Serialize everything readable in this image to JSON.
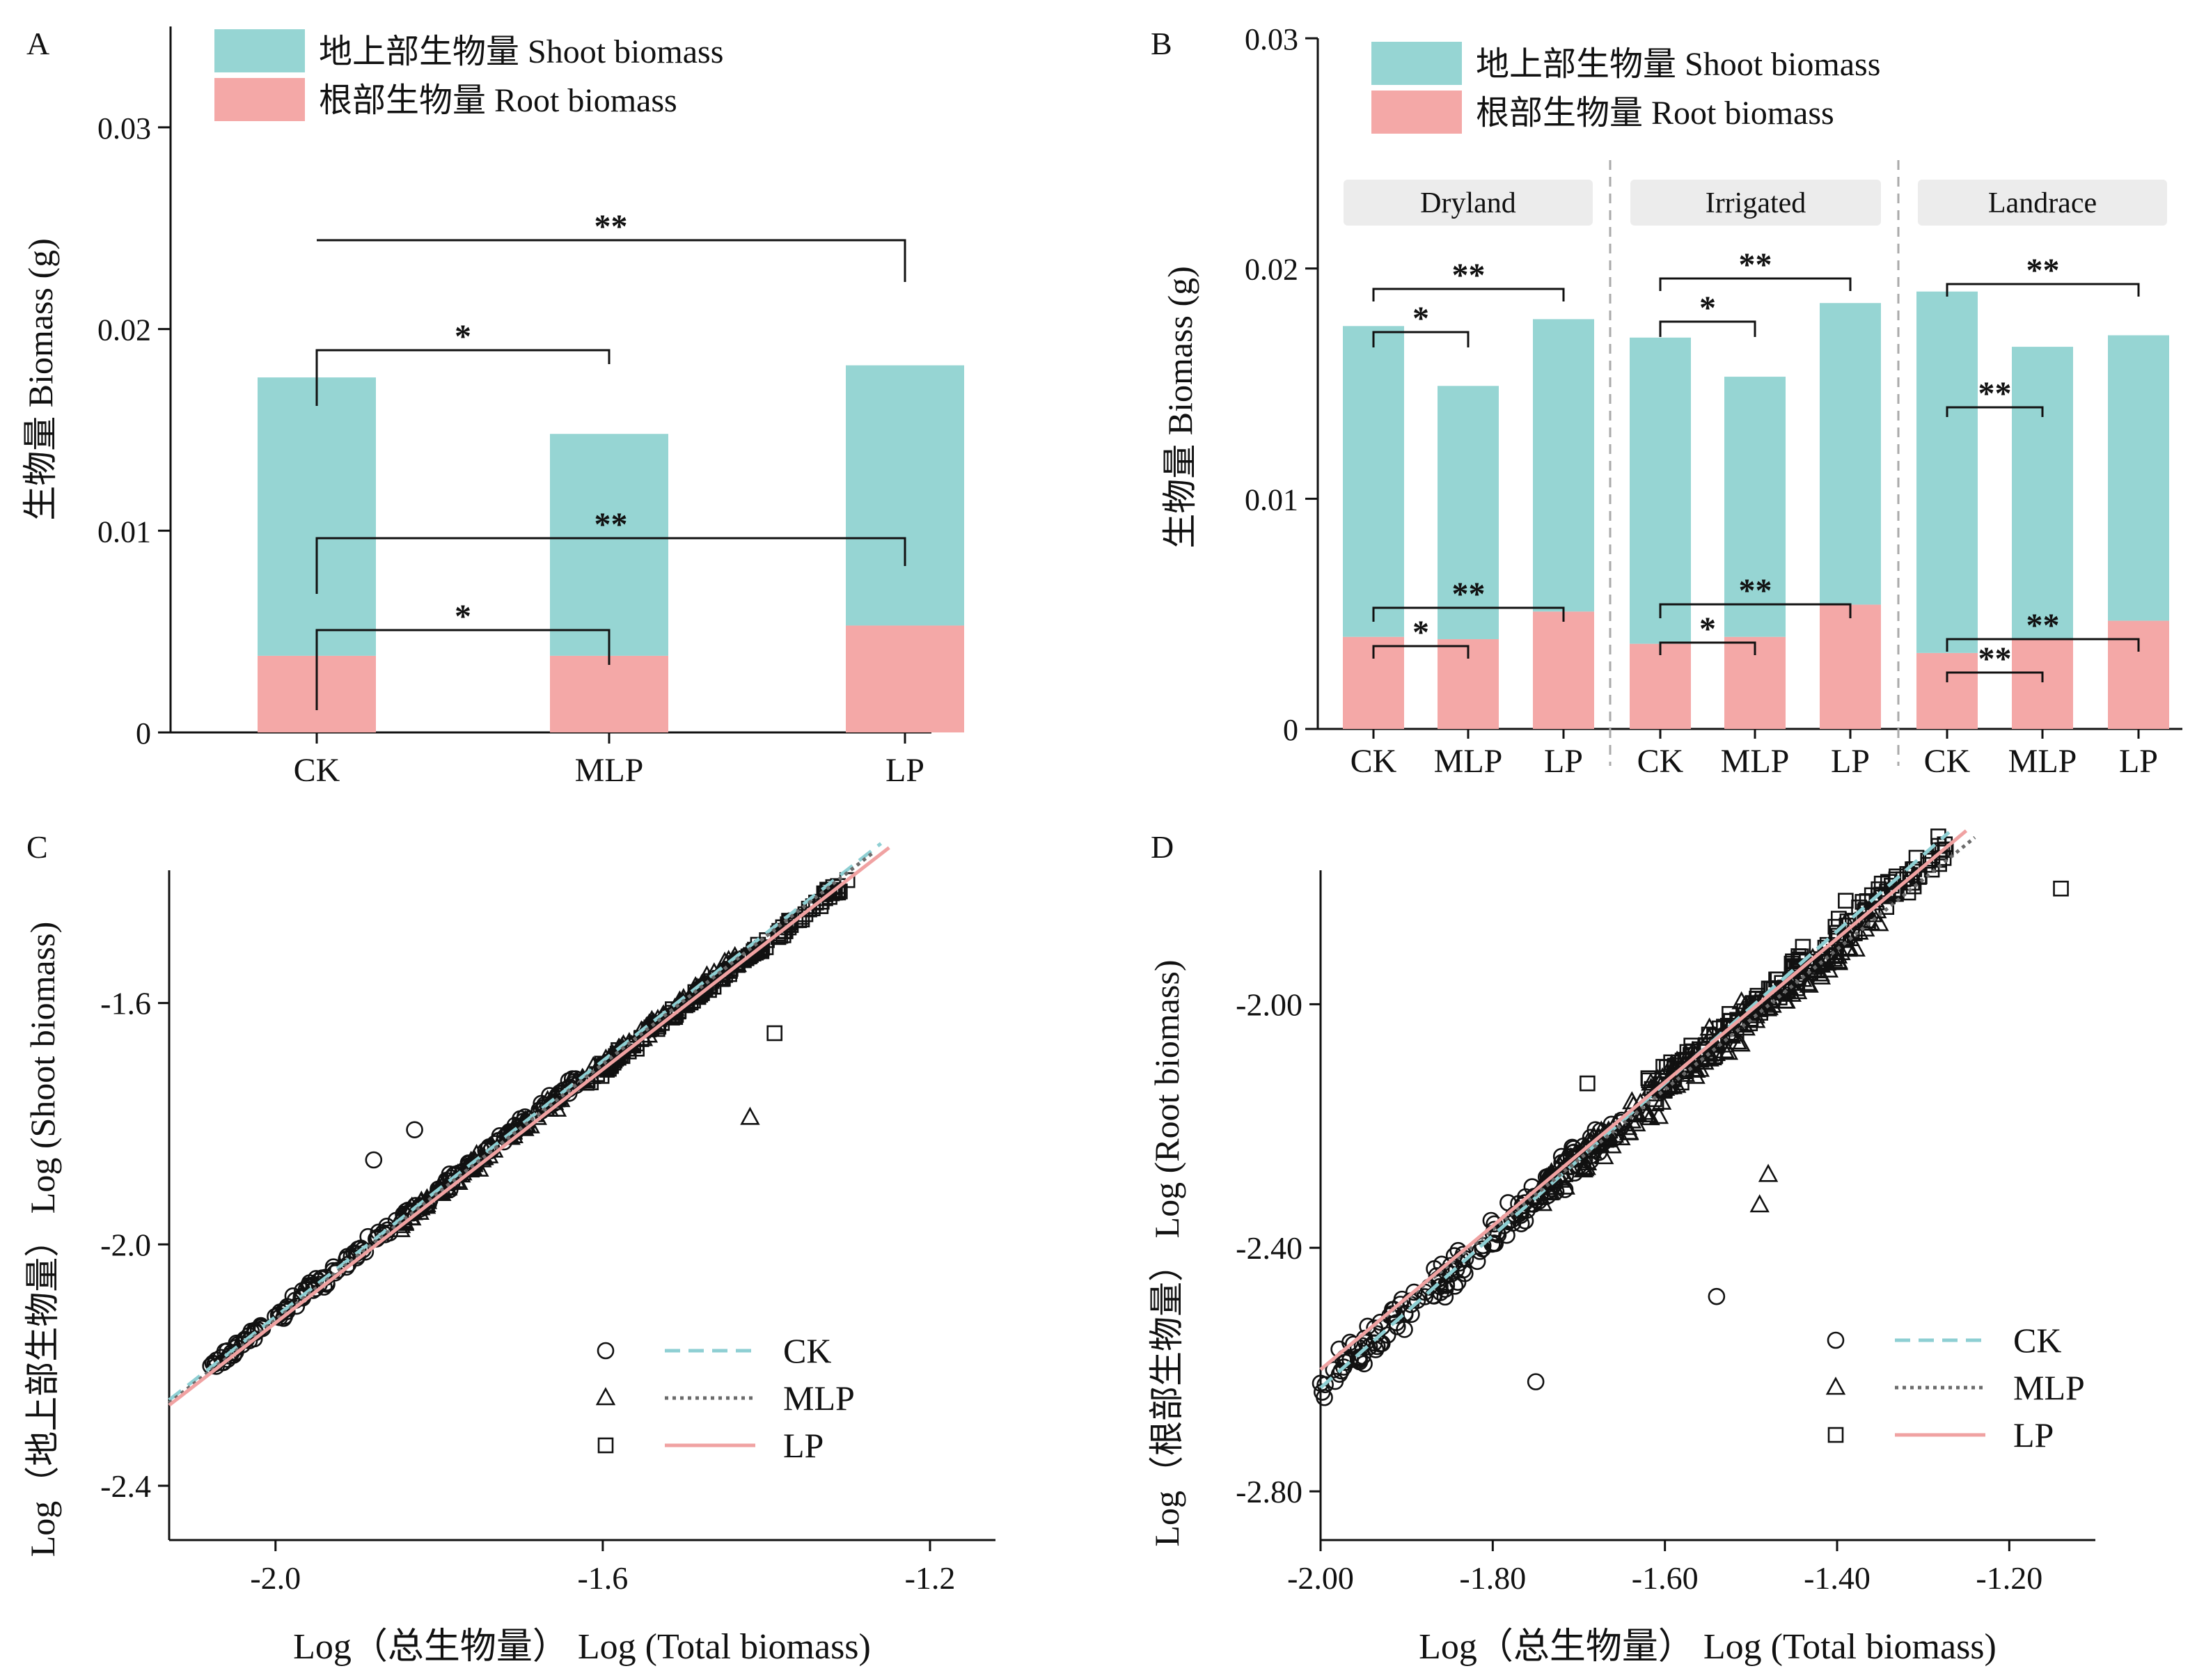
{
  "colors": {
    "shoot": "#96d5d3",
    "root": "#f4a8a7",
    "ck_line": "#8ecfd3",
    "mlp_line": "#6b6b6b",
    "lp_line": "#f0a2a2",
    "facet_bg": "#ececec",
    "axis": "#111111"
  },
  "chart_data": [
    {
      "panel": "A",
      "type": "bar",
      "stacked": true,
      "ylabel": "生物量 Biomass (g)",
      "ylim": [
        0,
        0.035
      ],
      "yticks": [
        "0",
        "0.01",
        "0.02",
        "0.03"
      ],
      "ytick_values": [
        0,
        0.01,
        0.02,
        0.03
      ],
      "categories": [
        "CK",
        "MLP",
        "LP"
      ],
      "series": [
        {
          "name": "地上部生物量 Shoot biomass",
          "values": [
            0.0138,
            0.011,
            0.0129
          ]
        },
        {
          "name": "根部生物量 Root biomass",
          "values": [
            0.0038,
            0.0038,
            0.0053
          ]
        }
      ],
      "legend": "top-left",
      "annotations": [
        {
          "from": "CK",
          "to": "LP",
          "level": "total",
          "label": "**"
        },
        {
          "from": "CK",
          "to": "MLP",
          "level": "total",
          "label": "*"
        },
        {
          "from": "CK",
          "to": "LP",
          "level": "shoot",
          "label": "**"
        },
        {
          "from": "CK",
          "to": "MLP",
          "level": "root",
          "label": "*"
        }
      ]
    },
    {
      "panel": "B",
      "type": "bar",
      "stacked": true,
      "ylabel": "生物量 Biomass (g)",
      "ylim": [
        0,
        0.03
      ],
      "yticks": [
        "0",
        "0.01",
        "0.02",
        "0.03"
      ],
      "ytick_values": [
        0,
        0.01,
        0.02,
        0.03
      ],
      "facets": [
        "Dryland",
        "Irrigated",
        "Landrace"
      ],
      "categories": [
        "CK",
        "MLP",
        "LP"
      ],
      "series": [
        {
          "name": "地上部生物量 Shoot biomass",
          "values": [
            [
              0.0135,
              0.011,
              0.0127
            ],
            [
              0.0133,
              0.0113,
              0.0131
            ],
            [
              0.0157,
              0.0127,
              0.0124
            ]
          ]
        },
        {
          "name": "根部生物量 Root biomass",
          "values": [
            [
              0.004,
              0.0039,
              0.0051
            ],
            [
              0.0037,
              0.004,
              0.0054
            ],
            [
              0.0033,
              0.0039,
              0.0047
            ]
          ]
        }
      ],
      "legend": "top-left",
      "annotations": [
        {
          "facet": "Dryland",
          "upper": [
            "**",
            "*"
          ],
          "lower": [
            "**",
            "*"
          ]
        },
        {
          "facet": "Irrigated",
          "upper": [
            "**",
            "*"
          ],
          "lower": [
            "**",
            "*"
          ]
        },
        {
          "facet": "Landrace",
          "upper": [
            "**",
            "**"
          ],
          "lower": [
            "**",
            "**"
          ]
        }
      ]
    },
    {
      "panel": "C",
      "type": "scatter",
      "xlabel": "Log（总生物量） Log (Total biomass)",
      "ylabel": "Log（地上部生物量） Log (Shoot biomass)",
      "xlim": [
        -2.13,
        -1.12
      ],
      "ylim": [
        -2.49,
        -1.38
      ],
      "xticks": [
        "-2.0",
        "-1.6",
        "-1.2"
      ],
      "xtick_values": [
        -2.0,
        -1.6,
        -1.2
      ],
      "yticks": [
        "-1.6",
        "-2.0",
        "-2.4"
      ],
      "ytick_values": [
        -1.6,
        -2.0,
        -2.4
      ],
      "series": [
        {
          "name": "CK",
          "marker": "circle",
          "line": "dashed",
          "slope": 1.06,
          "intercept": 0.0,
          "x_range": [
            -2.13,
            -1.26
          ],
          "x_span": [
            -2.08,
            -1.62
          ]
        },
        {
          "name": "MLP",
          "marker": "triangle",
          "line": "dotted",
          "slope": 1.06,
          "intercept": -0.005,
          "x_range": [
            -2.13,
            -1.27
          ],
          "x_span": [
            -1.85,
            -1.43
          ]
        },
        {
          "name": "LP",
          "marker": "square",
          "line": "solid",
          "slope": 1.05,
          "intercept": -0.03,
          "x_range": [
            -2.13,
            -1.25
          ],
          "x_span": [
            -1.62,
            -1.3
          ]
        }
      ],
      "outliers": [
        {
          "series": "CK",
          "x": -1.88,
          "y": -1.86
        },
        {
          "series": "CK",
          "x": -1.83,
          "y": -1.81
        },
        {
          "series": "MLP",
          "x": -1.42,
          "y": -1.79
        },
        {
          "series": "LP",
          "x": -1.39,
          "y": -1.65
        }
      ],
      "legend": "bottom-right"
    },
    {
      "panel": "D",
      "type": "scatter",
      "xlabel": "Log（总生物量） Log (Total biomass)",
      "ylabel": "Log（根部生物量） Log (Root biomass)",
      "xlim": [
        -2.0,
        -1.1
      ],
      "ylim": [
        -2.88,
        -1.78
      ],
      "xticks": [
        "-2.00",
        "-1.80",
        "-1.60",
        "-1.40",
        "-1.20"
      ],
      "xtick_values": [
        -2.0,
        -1.8,
        -1.6,
        -1.4,
        -1.2
      ],
      "yticks": [
        "-2.00",
        "-2.40",
        "-2.80"
      ],
      "ytick_values": [
        -2.0,
        -2.4,
        -2.8
      ],
      "series": [
        {
          "name": "CK",
          "marker": "circle",
          "line": "dashed",
          "slope": 1.25,
          "intercept": -0.13,
          "x_range": [
            -2.0,
            -1.27
          ],
          "x_span": [
            -2.0,
            -1.65
          ]
        },
        {
          "name": "MLP",
          "marker": "triangle",
          "line": "dotted",
          "slope": 1.15,
          "intercept": -0.3,
          "x_range": [
            -2.0,
            -1.24
          ],
          "x_span": [
            -1.75,
            -1.35
          ]
        },
        {
          "name": "LP",
          "marker": "square",
          "line": "solid",
          "slope": 1.18,
          "intercept": -0.24,
          "x_range": [
            -2.0,
            -1.25
          ],
          "x_span": [
            -1.62,
            -1.27
          ]
        }
      ],
      "outliers": [
        {
          "series": "CK",
          "x": -1.54,
          "y": -2.48
        },
        {
          "series": "CK",
          "x": -1.75,
          "y": -2.62
        },
        {
          "series": "MLP",
          "x": -1.49,
          "y": -2.33
        },
        {
          "series": "MLP",
          "x": -1.48,
          "y": -2.28
        },
        {
          "series": "LP",
          "x": -1.39,
          "y": -1.83
        },
        {
          "series": "LP",
          "x": -1.14,
          "y": -1.81
        },
        {
          "series": "LP",
          "x": -1.69,
          "y": -2.13
        }
      ],
      "legend": "bottom-right"
    }
  ],
  "panels": {
    "a": {
      "label": "A"
    },
    "b": {
      "label": "B"
    },
    "c": {
      "label": "C"
    },
    "d": {
      "label": "D"
    }
  }
}
